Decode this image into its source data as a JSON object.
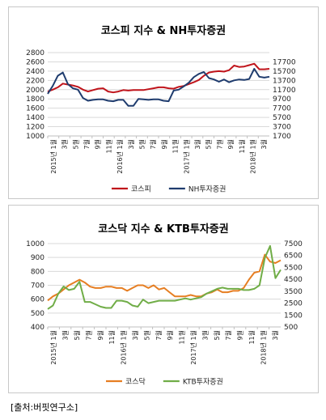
{
  "source": "[출처:버핏연구소]",
  "chart_data": [
    {
      "type": "line",
      "title": "코스피 지수 & NH투자증권",
      "y_left_ticks": [
        1000,
        1200,
        1400,
        1600,
        1800,
        2000,
        2200,
        2400,
        2600,
        2800
      ],
      "y_left_range": [
        1000,
        2800
      ],
      "y_right_ticks": [
        1700,
        3700,
        5700,
        7700,
        9700,
        11700,
        13700,
        15700,
        17700
      ],
      "y_right_range": [
        1700,
        19700
      ],
      "x_labels": [
        "2015년 1월",
        "3월",
        "5월",
        "7월",
        "9월",
        "11월",
        "2016년 1월",
        "3월",
        "5월",
        "7월",
        "9월",
        "11월",
        "2017년 1월",
        "3월",
        "5월",
        "7월",
        "9월",
        "11월",
        "2018년 1월",
        "3월"
      ],
      "grid": true,
      "legend_position": "bottom",
      "series": [
        {
          "name": "코스피",
          "axis": "left",
          "color": "#c0141b",
          "values": [
            1960,
            2000,
            2050,
            2130,
            2110,
            2090,
            2060,
            2000,
            1960,
            1990,
            2020,
            2030,
            1960,
            1940,
            1960,
            1990,
            1980,
            1990,
            1990,
            1990,
            2010,
            2030,
            2050,
            2050,
            2030,
            2020,
            2060,
            2080,
            2120,
            2160,
            2210,
            2300,
            2370,
            2390,
            2400,
            2390,
            2420,
            2520,
            2490,
            2500,
            2530,
            2560,
            2440,
            2440,
            2450
          ]
        },
        {
          "name": "NH투자증권",
          "axis": "right",
          "color": "#1f3c6e",
          "values": [
            10800,
            12500,
            14700,
            15400,
            12900,
            12000,
            11700,
            9900,
            9300,
            9500,
            9600,
            9600,
            9300,
            9200,
            9500,
            9500,
            8200,
            8200,
            9700,
            9600,
            9500,
            9600,
            9600,
            9300,
            9200,
            11500,
            11700,
            12400,
            13200,
            14400,
            15100,
            15500,
            14200,
            13900,
            13400,
            13900,
            13300,
            13700,
            13900,
            13800,
            14000,
            16200,
            14500,
            14300,
            14500
          ]
        }
      ]
    },
    {
      "type": "line",
      "title": "코스닥 지수 & KTB투자증권",
      "y_left_ticks": [
        400,
        500,
        600,
        700,
        800,
        900,
        1000
      ],
      "y_left_range": [
        400,
        1000
      ],
      "y_right_ticks": [
        500,
        1500,
        2500,
        3500,
        4500,
        5500,
        6500,
        7500
      ],
      "y_right_range": [
        500,
        7500
      ],
      "x_labels": [
        "2015년 1월",
        "3월",
        "5월",
        "7월",
        "9월",
        "11월",
        "2016년 1월",
        "3월",
        "5월",
        "7월",
        "9월",
        "11월",
        "2017년 1월",
        "3월",
        "5월",
        "7월",
        "9월",
        "11월",
        "2018년 1월",
        "3월"
      ],
      "grid": true,
      "legend_position": "bottom",
      "series": [
        {
          "name": "코스닥",
          "axis": "left",
          "color": "#e67e22",
          "values": [
            590,
            620,
            640,
            670,
            700,
            720,
            740,
            720,
            690,
            680,
            680,
            690,
            690,
            680,
            680,
            660,
            680,
            700,
            700,
            680,
            700,
            670,
            680,
            650,
            620,
            620,
            620,
            630,
            620,
            620,
            640,
            650,
            670,
            650,
            650,
            660,
            660,
            680,
            740,
            790,
            800,
            920,
            870,
            860,
            880
          ]
        },
        {
          "name": "KTB투자증권",
          "axis": "right",
          "color": "#70ad47",
          "values": [
            2000,
            2300,
            3300,
            3900,
            3600,
            3700,
            4300,
            2600,
            2600,
            2400,
            2200,
            2100,
            2100,
            2700,
            2700,
            2600,
            2300,
            2200,
            2800,
            2500,
            2600,
            2700,
            2700,
            2700,
            2700,
            2800,
            2900,
            2800,
            2900,
            3000,
            3300,
            3500,
            3700,
            3800,
            3700,
            3700,
            3700,
            3600,
            3600,
            3700,
            4000,
            6300,
            7300,
            4600,
            5300
          ]
        }
      ]
    }
  ]
}
